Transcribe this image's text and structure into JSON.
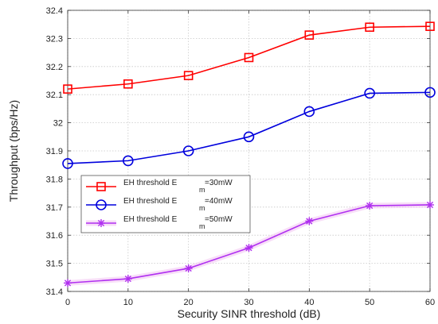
{
  "chart_data": {
    "type": "line",
    "title": "",
    "xlabel": "Security SINR threshold (dB)",
    "ylabel": "Throughput (bps/Hz)",
    "xlim": [
      0,
      60
    ],
    "ylim": [
      31.4,
      32.4
    ],
    "xticks": [
      "0",
      "10",
      "20",
      "30",
      "40",
      "50",
      "60"
    ],
    "yticks": [
      "31.4",
      "31.5",
      "31.6",
      "31.7",
      "31.8",
      "31.9",
      "32",
      "32.1",
      "32.2",
      "32.3",
      "32.4"
    ],
    "grid": true,
    "legend_position": "center-left",
    "x": [
      0,
      10,
      20,
      30,
      40,
      50,
      60
    ],
    "series": [
      {
        "name_prefix": "EH threshold E",
        "name_sub": "m",
        "name_suffix": "=30mW",
        "color": "#ff0000",
        "marker": "square",
        "values": [
          32.12,
          32.138,
          32.168,
          32.232,
          32.312,
          32.34,
          32.343
        ]
      },
      {
        "name_prefix": "EH threshold E",
        "name_sub": "m",
        "name_suffix": "=40mW",
        "color": "#0000dd",
        "marker": "circle",
        "values": [
          31.855,
          31.865,
          31.9,
          31.95,
          32.04,
          32.105,
          32.108
        ]
      },
      {
        "name_prefix": "EH threshold E",
        "name_sub": "m",
        "name_suffix": "=50mW",
        "color": "#b030f0",
        "marker": "star",
        "values": [
          31.43,
          31.445,
          31.482,
          31.555,
          31.65,
          31.705,
          31.708
        ]
      }
    ]
  }
}
